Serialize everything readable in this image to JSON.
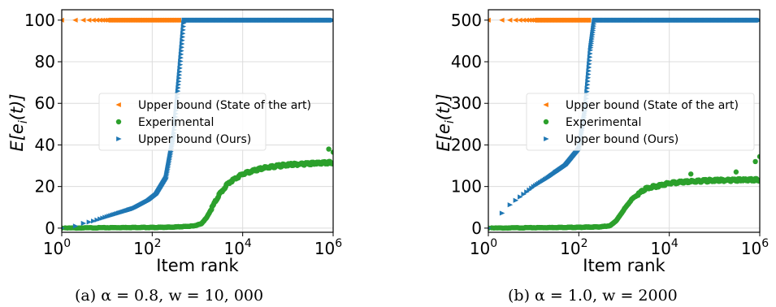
{
  "figure": {
    "captions": [
      "(a) α = 0.8, w = 10, 000",
      "(b) α = 1.0, w = 2000"
    ]
  },
  "chart_data": [
    {
      "type": "scatter",
      "panel": "a",
      "xlabel": "Item rank",
      "ylabel": "E[e_i(t)]",
      "x_scale": "log",
      "xlim": [
        1,
        1000000
      ],
      "ylim": [
        -2,
        105
      ],
      "x_ticks": [
        {
          "v": 1,
          "b": "10",
          "e": "0"
        },
        {
          "v": 100,
          "b": "10",
          "e": "2"
        },
        {
          "v": 10000,
          "b": "10",
          "e": "4"
        },
        {
          "v": 1000000,
          "b": "10",
          "e": "6"
        }
      ],
      "y_ticks": [
        0,
        20,
        40,
        60,
        80,
        100
      ],
      "grid": true,
      "legend_position": "center-right",
      "series": [
        {
          "name": "Upper bound (State of the art)",
          "color": "#ff7f0e",
          "marker": "triangle-left",
          "points": [
            [
              1,
              100
            ],
            [
              2,
              100
            ],
            [
              3,
              100
            ],
            [
              5,
              100
            ],
            [
              8,
              100
            ],
            [
              20,
              100
            ],
            [
              100,
              100
            ],
            [
              400,
              100
            ]
          ]
        },
        {
          "name": "Experimental",
          "color": "#2ca02c",
          "marker": "circle",
          "points": [
            [
              1,
              0
            ],
            [
              3,
              0.1
            ],
            [
              10,
              0.2
            ],
            [
              30,
              0.3
            ],
            [
              100,
              0.3
            ],
            [
              300,
              0.5
            ],
            [
              800,
              1
            ],
            [
              1200,
              2
            ],
            [
              1600,
              5
            ],
            [
              2000,
              9
            ],
            [
              3000,
              16
            ],
            [
              5000,
              22
            ],
            [
              10000,
              26
            ],
            [
              30000,
              29
            ],
            [
              100000,
              30.5
            ],
            [
              300000,
              31
            ],
            [
              1000000,
              31.5
            ]
          ],
          "outliers": [
            [
              1000000,
              36.5
            ],
            [
              800000,
              38
            ]
          ]
        },
        {
          "name": "Upper bound (Ours)",
          "color": "#1f77b4",
          "marker": "triangle-right",
          "points": [
            [
              1,
              0
            ],
            [
              2,
              1
            ],
            [
              3,
              2.3
            ],
            [
              5,
              3.4
            ],
            [
              10,
              5.5
            ],
            [
              20,
              7.5
            ],
            [
              40,
              9.5
            ],
            [
              80,
              13
            ],
            [
              120,
              16
            ],
            [
              200,
              24
            ],
            [
              300,
              45
            ],
            [
              400,
              75
            ],
            [
              500,
              100
            ],
            [
              1000,
              100
            ],
            [
              10000,
              100
            ],
            [
              100000,
              100
            ],
            [
              1000000,
              100
            ]
          ]
        }
      ]
    },
    {
      "type": "scatter",
      "panel": "b",
      "xlabel": "Item rank",
      "ylabel": "E[e_i(t)]",
      "x_scale": "log",
      "xlim": [
        1,
        1000000
      ],
      "ylim": [
        -10,
        525
      ],
      "x_ticks": [
        {
          "v": 1,
          "b": "10",
          "e": "0"
        },
        {
          "v": 100,
          "b": "10",
          "e": "2"
        },
        {
          "v": 10000,
          "b": "10",
          "e": "4"
        },
        {
          "v": 1000000,
          "b": "10",
          "e": "6"
        }
      ],
      "y_ticks": [
        0,
        100,
        200,
        300,
        400,
        500
      ],
      "grid": true,
      "legend_position": "center-right",
      "series": [
        {
          "name": "Upper bound (State of the art)",
          "color": "#ff7f0e",
          "marker": "triangle-left",
          "points": [
            [
              1,
              500
            ],
            [
              2,
              500
            ],
            [
              3,
              500
            ],
            [
              5,
              500
            ],
            [
              8,
              500
            ],
            [
              20,
              500
            ],
            [
              100,
              500
            ],
            [
              170,
              500
            ]
          ]
        },
        {
          "name": "Experimental",
          "color": "#2ca02c",
          "marker": "circle",
          "points": [
            [
              1,
              0
            ],
            [
              3,
              0.5
            ],
            [
              10,
              1
            ],
            [
              30,
              1.5
            ],
            [
              100,
              2
            ],
            [
              300,
              3
            ],
            [
              500,
              6
            ],
            [
              700,
              20
            ],
            [
              1000,
              45
            ],
            [
              1500,
              70
            ],
            [
              3000,
              95
            ],
            [
              10000,
              108
            ],
            [
              30000,
              112
            ],
            [
              100000,
              115
            ],
            [
              1000000,
              116
            ]
          ],
          "outliers": [
            [
              1000000,
              172
            ],
            [
              800000,
              160
            ],
            [
              30000,
              130
            ],
            [
              300000,
              135
            ]
          ]
        },
        {
          "name": "Upper bound (Ours)",
          "color": "#1f77b4",
          "marker": "triangle-right",
          "points": [
            [
              1,
              0
            ],
            [
              2,
              36
            ],
            [
              3,
              56
            ],
            [
              5,
              75
            ],
            [
              10,
              100
            ],
            [
              20,
              120
            ],
            [
              50,
              150
            ],
            [
              100,
              190
            ],
            [
              140,
              290
            ],
            [
              180,
              430
            ],
            [
              220,
              500
            ],
            [
              1000,
              500
            ],
            [
              10000,
              500
            ],
            [
              100000,
              500
            ],
            [
              1000000,
              500
            ]
          ]
        }
      ]
    }
  ]
}
